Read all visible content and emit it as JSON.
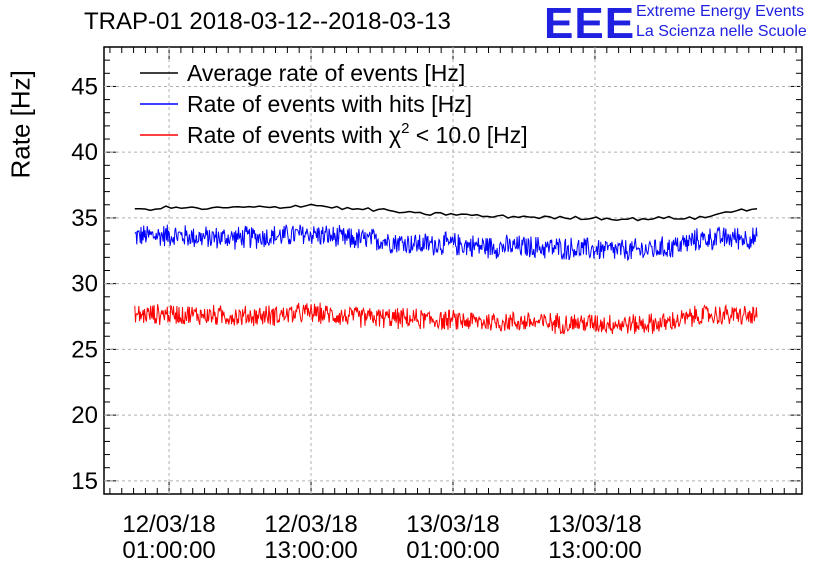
{
  "chart_data": {
    "type": "line",
    "title": "TRAP-01 2018-03-12--2018-03-13",
    "ylabel": "Rate [Hz]",
    "xlabel": "",
    "ylim": [
      14,
      48
    ],
    "x_ticks": [
      {
        "date": "12/03/18",
        "time": "01:00:00"
      },
      {
        "date": "12/03/18",
        "time": "13:00:00"
      },
      {
        "date": "13/03/18",
        "time": "01:00:00"
      },
      {
        "date": "13/03/18",
        "time": "13:00:00"
      }
    ],
    "y_ticks": [
      15,
      20,
      25,
      30,
      35,
      40,
      45
    ],
    "x_range_hours": [
      -5.5,
      53.5
    ],
    "grid": true,
    "legend_position": "top-left",
    "series": [
      {
        "name": "Average rate of events [Hz]",
        "color": "#000000",
        "x_hours": [
          -2.9,
          0,
          3,
          6,
          9,
          12,
          15,
          18,
          21,
          24,
          27,
          30,
          33,
          36,
          39,
          42,
          45,
          48,
          49.7
        ],
        "values": [
          35.6,
          35.8,
          35.7,
          35.8,
          35.8,
          36.0,
          35.7,
          35.6,
          35.3,
          35.3,
          35.1,
          35.1,
          35.0,
          35.0,
          34.9,
          35.0,
          35.0,
          35.6,
          35.7
        ]
      },
      {
        "name": "Rate of events with hits [Hz]",
        "color": "#0000ff",
        "x_hours": [
          -2.9,
          0,
          3,
          6,
          9,
          12,
          15,
          18,
          21,
          24,
          27,
          30,
          33,
          36,
          39,
          42,
          45,
          48,
          49.7
        ],
        "values": [
          33.6,
          33.7,
          33.5,
          33.5,
          33.6,
          33.8,
          33.4,
          33.3,
          33.0,
          33.0,
          32.8,
          32.8,
          32.7,
          32.6,
          32.5,
          32.7,
          33.4,
          33.5,
          33.4
        ],
        "spread": 1.0
      },
      {
        "name": "Rate of events with χ² < 10.0 [Hz]",
        "color": "#ff0000",
        "x_hours": [
          -2.9,
          0,
          3,
          6,
          9,
          12,
          15,
          18,
          21,
          24,
          27,
          30,
          33,
          36,
          39,
          42,
          45,
          48,
          49.7
        ],
        "values": [
          27.6,
          27.7,
          27.6,
          27.5,
          27.6,
          27.8,
          27.5,
          27.4,
          27.3,
          27.2,
          27.1,
          27.1,
          27.0,
          27.0,
          26.9,
          27.0,
          27.6,
          27.6,
          27.5
        ],
        "spread": 0.9
      }
    ]
  },
  "logo": {
    "mark": "EEE",
    "line1": "Extreme Energy Events",
    "line2": "La Scienza nelle Scuole"
  }
}
